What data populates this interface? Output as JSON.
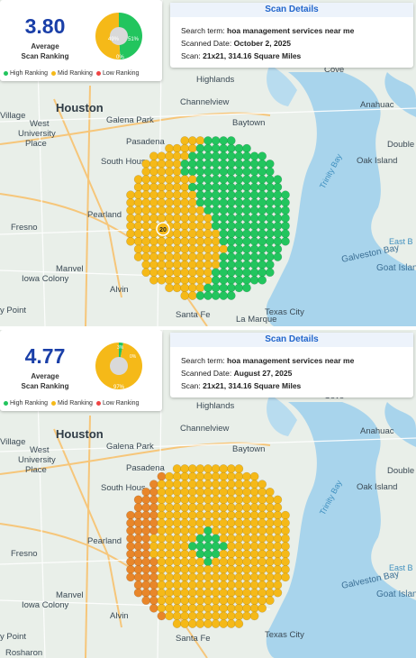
{
  "scans": [
    {
      "score": "3.80",
      "score_label_1": "Average",
      "score_label_2": "Scan Ranking",
      "pie": {
        "high_pct": "49%",
        "mid_pct": "51%",
        "low_pct": "0%",
        "high_fraction": 0.49,
        "mid_fraction": 0.51
      },
      "legend": {
        "high": "High Ranking",
        "mid": "Mid Ranking",
        "low": "Low Ranking"
      },
      "details": {
        "title": "Scan Details",
        "search_label": "Search term:",
        "search_value": "hoa management services near me",
        "date_label": "Scanned Date:",
        "date_value": "October 2, 2025",
        "scan_label": "Scan:",
        "scan_value": "21x21, 314.16 Square Miles"
      },
      "center_marker": "20"
    },
    {
      "score": "4.77",
      "score_label_1": "Average",
      "score_label_2": "Scan Ranking",
      "pie": {
        "high_pct": "3%",
        "mid_pct": "97%",
        "low_pct": "0%",
        "high_fraction": 0.03,
        "mid_fraction": 0.97
      },
      "legend": {
        "high": "High Ranking",
        "mid": "Mid Ranking",
        "low": "Low Ranking"
      },
      "details": {
        "title": "Scan Details",
        "search_label": "Search term:",
        "search_value": "hoa management services near me",
        "date_label": "Scanned Date:",
        "date_value": "August 27, 2025",
        "scan_label": "Scan:",
        "scan_value": "21x21, 314.16 Square Miles"
      }
    }
  ],
  "map_labels": {
    "houston": "Houston",
    "west_university": "West",
    "west_university_2": "University",
    "west_university_3": "Place",
    "village": "Village",
    "galena_park": "Galena Park",
    "pasadena": "Pasadena",
    "south_houston": "South Hous",
    "channelview": "Channelview",
    "highlands": "Highlands",
    "baytown": "Baytown",
    "cove": "Cove",
    "anahuac": "Anahuac",
    "double": "Double",
    "oak_island": "Oak Island",
    "trinity_bay": "Trinity Bay",
    "galveston_bay": "Galveston Bay",
    "east_b": "East B",
    "goat_island": "Goat Island",
    "fresno": "Fresno",
    "pearland": "Pearland",
    "manvel": "Manvel",
    "iowa_colony": "Iowa Colony",
    "alvin": "Alvin",
    "santa_fe": "Santa Fe",
    "la_marque": "La Marque",
    "texas_city": "Texas City",
    "point": "y Point",
    "rosharon": "Rosharon",
    "colors": {
      "high": "#22c55e",
      "mid": "#f5b918",
      "low": "#ef4444",
      "orange": "#e8862a"
    }
  }
}
